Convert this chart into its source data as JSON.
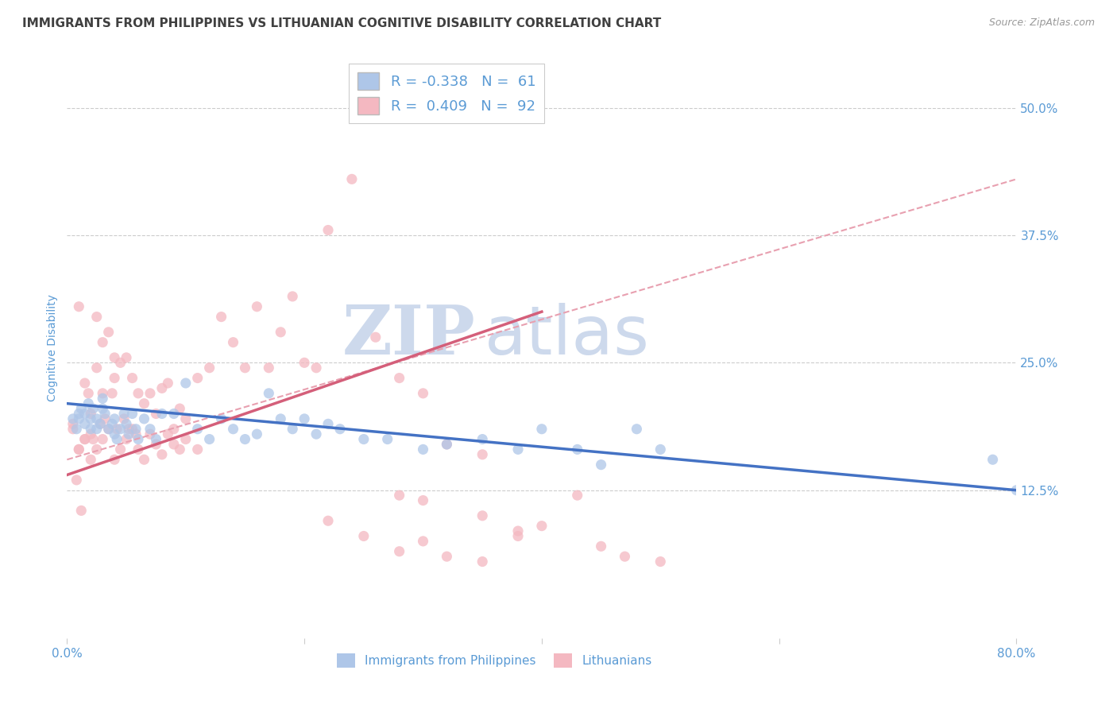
{
  "title": "IMMIGRANTS FROM PHILIPPINES VS LITHUANIAN COGNITIVE DISABILITY CORRELATION CHART",
  "source_text": "Source: ZipAtlas.com",
  "ylabel": "Cognitive Disability",
  "xlim": [
    0.0,
    0.8
  ],
  "ylim": [
    -0.02,
    0.55
  ],
  "yticks": [
    0.125,
    0.25,
    0.375,
    0.5
  ],
  "ytick_labels": [
    "12.5%",
    "25.0%",
    "37.5%",
    "50.0%"
  ],
  "xticks": [
    0.0,
    0.2,
    0.4,
    0.6,
    0.8
  ],
  "xtick_labels": [
    "0.0%",
    "",
    "",
    "",
    "80.0%"
  ],
  "legend_r1": "R = -0.338   N =  61",
  "legend_r2": "R =  0.409   N =  92",
  "legend_color1": "#aec6e8",
  "legend_color2": "#f4b8c1",
  "watermark_zip": "ZIP",
  "watermark_atlas": "atlas",
  "blue_scatter_x": [
    0.005,
    0.008,
    0.01,
    0.01,
    0.012,
    0.015,
    0.015,
    0.018,
    0.02,
    0.02,
    0.022,
    0.025,
    0.025,
    0.028,
    0.03,
    0.03,
    0.032,
    0.035,
    0.038,
    0.04,
    0.04,
    0.042,
    0.045,
    0.048,
    0.05,
    0.052,
    0.055,
    0.058,
    0.06,
    0.065,
    0.07,
    0.075,
    0.08,
    0.09,
    0.1,
    0.11,
    0.12,
    0.13,
    0.14,
    0.15,
    0.16,
    0.17,
    0.18,
    0.19,
    0.2,
    0.21,
    0.22,
    0.23,
    0.25,
    0.27,
    0.3,
    0.32,
    0.35,
    0.38,
    0.4,
    0.43,
    0.45,
    0.48,
    0.5,
    0.78,
    0.8
  ],
  "blue_scatter_y": [
    0.195,
    0.185,
    0.2,
    0.195,
    0.205,
    0.19,
    0.2,
    0.21,
    0.195,
    0.185,
    0.205,
    0.195,
    0.185,
    0.19,
    0.215,
    0.205,
    0.2,
    0.185,
    0.19,
    0.195,
    0.18,
    0.175,
    0.185,
    0.2,
    0.19,
    0.18,
    0.2,
    0.185,
    0.175,
    0.195,
    0.185,
    0.175,
    0.2,
    0.2,
    0.23,
    0.185,
    0.175,
    0.195,
    0.185,
    0.175,
    0.18,
    0.22,
    0.195,
    0.185,
    0.195,
    0.18,
    0.19,
    0.185,
    0.175,
    0.175,
    0.165,
    0.17,
    0.175,
    0.165,
    0.185,
    0.165,
    0.15,
    0.185,
    0.165,
    0.155,
    0.125
  ],
  "pink_scatter_x": [
    0.005,
    0.008,
    0.01,
    0.01,
    0.012,
    0.015,
    0.015,
    0.018,
    0.02,
    0.02,
    0.022,
    0.025,
    0.025,
    0.028,
    0.03,
    0.03,
    0.032,
    0.035,
    0.038,
    0.04,
    0.04,
    0.042,
    0.045,
    0.048,
    0.05,
    0.052,
    0.055,
    0.058,
    0.06,
    0.065,
    0.07,
    0.075,
    0.08,
    0.085,
    0.09,
    0.095,
    0.1,
    0.11,
    0.12,
    0.13,
    0.14,
    0.15,
    0.16,
    0.17,
    0.18,
    0.19,
    0.2,
    0.21,
    0.22,
    0.24,
    0.26,
    0.28,
    0.3,
    0.32,
    0.35,
    0.22,
    0.25,
    0.28,
    0.3,
    0.32,
    0.35,
    0.38,
    0.28,
    0.3,
    0.35,
    0.38,
    0.4,
    0.43,
    0.45,
    0.47,
    0.5,
    0.005,
    0.01,
    0.015,
    0.02,
    0.025,
    0.03,
    0.035,
    0.04,
    0.045,
    0.05,
    0.055,
    0.06,
    0.065,
    0.07,
    0.075,
    0.08,
    0.085,
    0.09,
    0.095,
    0.1,
    0.11
  ],
  "pink_scatter_y": [
    0.19,
    0.135,
    0.305,
    0.165,
    0.105,
    0.23,
    0.175,
    0.22,
    0.2,
    0.18,
    0.175,
    0.295,
    0.245,
    0.19,
    0.27,
    0.22,
    0.195,
    0.28,
    0.22,
    0.255,
    0.235,
    0.185,
    0.25,
    0.195,
    0.255,
    0.185,
    0.235,
    0.18,
    0.22,
    0.21,
    0.22,
    0.2,
    0.225,
    0.23,
    0.185,
    0.205,
    0.195,
    0.235,
    0.245,
    0.295,
    0.27,
    0.245,
    0.305,
    0.245,
    0.28,
    0.315,
    0.25,
    0.245,
    0.38,
    0.43,
    0.275,
    0.235,
    0.22,
    0.17,
    0.16,
    0.095,
    0.08,
    0.065,
    0.115,
    0.06,
    0.055,
    0.085,
    0.12,
    0.075,
    0.1,
    0.08,
    0.09,
    0.12,
    0.07,
    0.06,
    0.055,
    0.185,
    0.165,
    0.175,
    0.155,
    0.165,
    0.175,
    0.185,
    0.155,
    0.165,
    0.175,
    0.185,
    0.165,
    0.155,
    0.18,
    0.17,
    0.16,
    0.18,
    0.17,
    0.165,
    0.175,
    0.165
  ],
  "blue_line_x": [
    0.0,
    0.8
  ],
  "blue_line_y": [
    0.21,
    0.125
  ],
  "pink_line_x": [
    0.0,
    0.4
  ],
  "pink_line_y": [
    0.14,
    0.3
  ],
  "pink_dashed_line_x": [
    0.0,
    0.8
  ],
  "pink_dashed_line_y": [
    0.155,
    0.43
  ],
  "blue_dot_color": "#aec6e8",
  "pink_dot_color": "#f4b8c1",
  "blue_line_color": "#4472c4",
  "pink_line_color": "#d45f7a",
  "pink_dashed_color": "#e8a0b0",
  "grid_color": "#cccccc",
  "background_color": "#ffffff",
  "title_color": "#404040",
  "axis_label_color": "#5b9bd5",
  "tick_label_color": "#5b9bd5",
  "watermark_color": "#cdd9ec",
  "title_fontsize": 11,
  "axis_label_fontsize": 10,
  "tick_fontsize": 11,
  "legend_fontsize": 13
}
